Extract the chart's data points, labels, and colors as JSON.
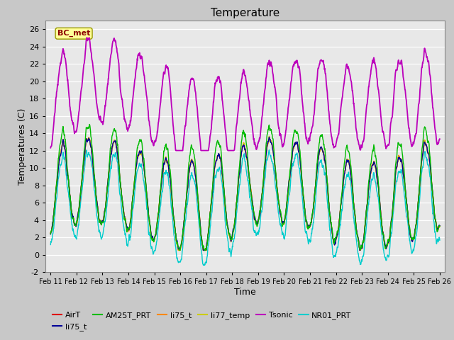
{
  "title": "Temperature",
  "xlabel": "Time",
  "ylabel": "Temperatures (C)",
  "ylim": [
    -2,
    27
  ],
  "xtick_labels": [
    "Feb 11",
    "Feb 12",
    "Feb 13",
    "Feb 14",
    "Feb 15",
    "Feb 16",
    "Feb 17",
    "Feb 18",
    "Feb 19",
    "Feb 20",
    "Feb 21",
    "Feb 22",
    "Feb 23",
    "Feb 24",
    "Feb 25",
    "Feb 26"
  ],
  "annotation": "BC_met",
  "annotation_color": "#8B0000",
  "annotation_bg": "#FFFF99",
  "series": {
    "AirT": {
      "color": "#DD0000",
      "lw": 1.0
    },
    "li75_t": {
      "color": "#000099",
      "lw": 1.0
    },
    "AM25T_PRT": {
      "color": "#00BB00",
      "lw": 1.0
    },
    "li75_t2": {
      "color": "#FF8800",
      "lw": 1.0
    },
    "li77_temp": {
      "color": "#CCCC00",
      "lw": 1.0
    },
    "Tsonic": {
      "color": "#BB00BB",
      "lw": 1.3
    },
    "NR01_PRT": {
      "color": "#00CCCC",
      "lw": 1.0
    }
  },
  "legend_entries": [
    "AirT",
    "li75_t",
    "AM25T_PRT",
    "li75_t",
    "li77_temp",
    "Tsonic",
    "NR01_PRT"
  ],
  "legend_colors": [
    "#DD0000",
    "#000099",
    "#00BB00",
    "#FF8800",
    "#CCCC00",
    "#BB00BB",
    "#00CCCC"
  ],
  "bg_color": "#C8C8C8",
  "plot_bg": "#E8E8E8"
}
